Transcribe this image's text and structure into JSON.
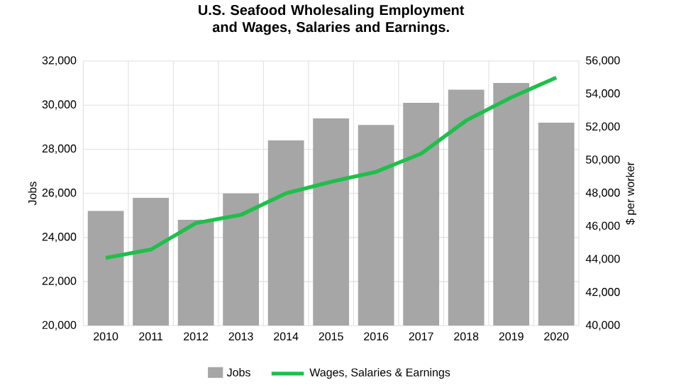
{
  "chart_data": {
    "type": "bar",
    "title": "U.S. Seafood Wholesaling Employment and Wages, Salaries and Earnings.",
    "categories": [
      "2010",
      "2011",
      "2012",
      "2013",
      "2014",
      "2015",
      "2016",
      "2017",
      "2018",
      "2019",
      "2020"
    ],
    "series": [
      {
        "name": "Jobs",
        "color": "#a6a6a6",
        "values": [
          25200,
          25800,
          24800,
          26000,
          28400,
          29400,
          29100,
          30100,
          30700,
          31000,
          29200
        ]
      },
      {
        "name": "Wages, Salaries & Earnings",
        "type": "line",
        "axis": "y2",
        "color": "#1fbf4a",
        "values": [
          44100,
          44600,
          46200,
          46700,
          48000,
          48700,
          49300,
          50400,
          52400,
          53800,
          55000
        ]
      }
    ],
    "ylabel": "Jobs",
    "y2label": "$ per worker",
    "ylim": [
      20000,
      32000
    ],
    "yticks": [
      {
        "value": 20000,
        "label": "20,000"
      },
      {
        "value": 22000,
        "label": "22,000"
      },
      {
        "value": 24000,
        "label": "24,000"
      },
      {
        "value": 26000,
        "label": "26,000"
      },
      {
        "value": 28000,
        "label": "28,000"
      },
      {
        "value": 30000,
        "label": "30,000"
      },
      {
        "value": 32000,
        "label": "32,000"
      }
    ],
    "y2lim": [
      40000,
      56000
    ],
    "y2ticks": [
      {
        "value": 40000,
        "label": "40,000"
      },
      {
        "value": 42000,
        "label": "42,000"
      },
      {
        "value": 44000,
        "label": "44,000"
      },
      {
        "value": 46000,
        "label": "46,000"
      },
      {
        "value": 48000,
        "label": "48,000"
      },
      {
        "value": 50000,
        "label": "50,000"
      },
      {
        "value": 52000,
        "label": "52,000"
      },
      {
        "value": 54000,
        "label": "54,000"
      },
      {
        "value": 56000,
        "label": "56,000"
      }
    ],
    "grid": true,
    "legend": "bottom",
    "marker": "none",
    "line_style": "solid"
  }
}
